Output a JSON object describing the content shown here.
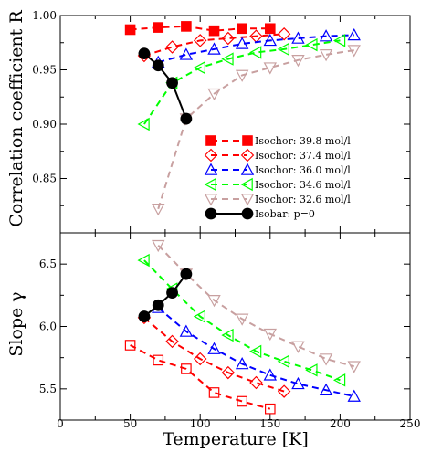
{
  "chart_data": {
    "type": "line",
    "x_axis": {
      "label": "Temperature [K]",
      "lim": [
        0,
        250
      ],
      "ticks": [
        0,
        50,
        100,
        150,
        200,
        250
      ],
      "tick_labels": [
        "0",
        "50",
        "100",
        "150",
        "200",
        "250"
      ]
    },
    "panels": [
      {
        "id": "top",
        "ylabel": "Correlation coefficient R",
        "ylim": [
          0.8,
          1.0
        ],
        "yticks": [
          0.85,
          0.9,
          0.95,
          1.0
        ],
        "ytick_labels": [
          "0.85",
          "0.90",
          "0.95",
          "1.00"
        ],
        "legend_position": "center-right",
        "series": [
          {
            "name": "Isochor: 39.8 mol/l",
            "color": "#ff0000",
            "marker": "square-filled",
            "x": [
              50,
              70,
              90,
              110,
              130,
              150
            ],
            "y": [
              0.987,
              0.989,
              0.99,
              0.986,
              0.988,
              0.988
            ]
          },
          {
            "name": "Isochor: 37.4 mol/l",
            "color": "#ff0000",
            "marker": "diamond-open",
            "x": [
              60,
              80,
              100,
              120,
              140,
              160
            ],
            "y": [
              0.963,
              0.971,
              0.977,
              0.979,
              0.981,
              0.983
            ]
          },
          {
            "name": "Isochor: 36.0 mol/l",
            "color": "#0000ff",
            "marker": "triangle-up-open",
            "x": [
              70,
              90,
              110,
              130,
              150,
              170,
              190,
              210
            ],
            "y": [
              0.957,
              0.964,
              0.969,
              0.974,
              0.977,
              0.979,
              0.981,
              0.982
            ]
          },
          {
            "name": "Isochor: 34.6 mol/l",
            "color": "#00ff00",
            "marker": "triangle-left-open",
            "x": [
              60,
              80,
              100,
              120,
              140,
              160,
              180,
              200
            ],
            "y": [
              0.9,
              0.938,
              0.952,
              0.96,
              0.966,
              0.969,
              0.973,
              0.977
            ]
          },
          {
            "name": "Isochor: 32.6 mol/l",
            "color": "#c8a0a0",
            "marker": "triangle-down-open",
            "x": [
              70,
              90,
              110,
              130,
              150,
              170,
              190,
              210
            ],
            "y": [
              0.822,
              0.905,
              0.928,
              0.945,
              0.952,
              0.959,
              0.964,
              0.968
            ]
          },
          {
            "name": "Isobar:  p=0",
            "color": "#000000",
            "marker": "circle-filled",
            "x": [
              60,
              70,
              80,
              90
            ],
            "y": [
              0.965,
              0.954,
              0.938,
              0.905
            ]
          }
        ]
      },
      {
        "id": "bottom",
        "ylabel": "Slope γ",
        "ylim": [
          5.25,
          6.75
        ],
        "yticks": [
          5.5,
          6.0,
          6.5
        ],
        "ytick_labels": [
          "5.5",
          "6.0",
          "6.5"
        ],
        "series": [
          {
            "color": "#ff0000",
            "marker": "square-open",
            "x": [
              50,
              70,
              90,
              110,
              130,
              150
            ],
            "y": [
              5.85,
              5.73,
              5.66,
              5.47,
              5.4,
              5.34
            ]
          },
          {
            "color": "#ff0000",
            "marker": "diamond-open",
            "x": [
              60,
              80,
              100,
              120,
              140,
              160
            ],
            "y": [
              6.07,
              5.88,
              5.74,
              5.63,
              5.55,
              5.48
            ]
          },
          {
            "color": "#0000ff",
            "marker": "triangle-up-open",
            "x": [
              70,
              90,
              110,
              130,
              150,
              170,
              190,
              210
            ],
            "y": [
              6.15,
              5.96,
              5.82,
              5.7,
              5.61,
              5.54,
              5.49,
              5.44
            ]
          },
          {
            "color": "#00ff00",
            "marker": "triangle-left-open",
            "x": [
              60,
              80,
              100,
              120,
              140,
              160,
              180,
              200
            ],
            "y": [
              6.53,
              6.3,
              6.08,
              5.93,
              5.8,
              5.72,
              5.65,
              5.57
            ]
          },
          {
            "color": "#c8a0a0",
            "marker": "triangle-down-open",
            "x": [
              70,
              90,
              110,
              130,
              150,
              170,
              190,
              210
            ],
            "y": [
              6.65,
              6.42,
              6.21,
              6.06,
              5.94,
              5.84,
              5.74,
              5.68
            ]
          },
          {
            "color": "#000000",
            "marker": "circle-filled",
            "x": [
              60,
              70,
              80,
              90
            ],
            "y": [
              6.08,
              6.17,
              6.27,
              6.42
            ]
          }
        ]
      }
    ]
  }
}
